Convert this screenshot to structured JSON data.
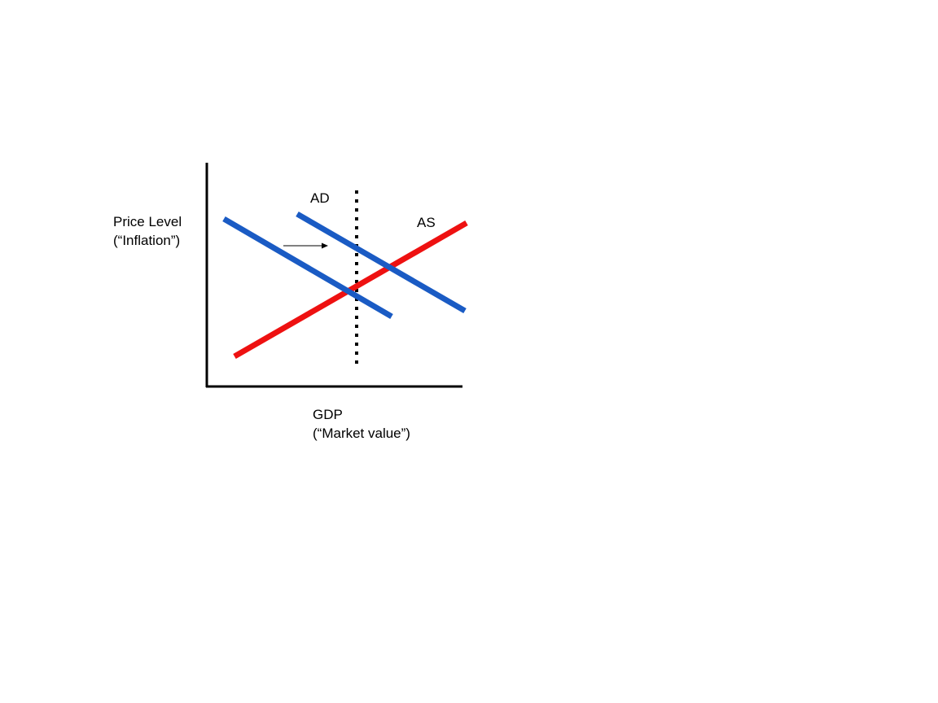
{
  "diagram": {
    "ylabel_line1": "Price Level",
    "ylabel_line2": "(“Inflation”)",
    "xlabel_line1": "GDP",
    "xlabel_line2": "(“Market value”)",
    "ad_label": "AD",
    "as_label": "AS",
    "colors": {
      "ad": "#1a5bc4",
      "as": "#ee1111",
      "axis": "#000000"
    }
  }
}
